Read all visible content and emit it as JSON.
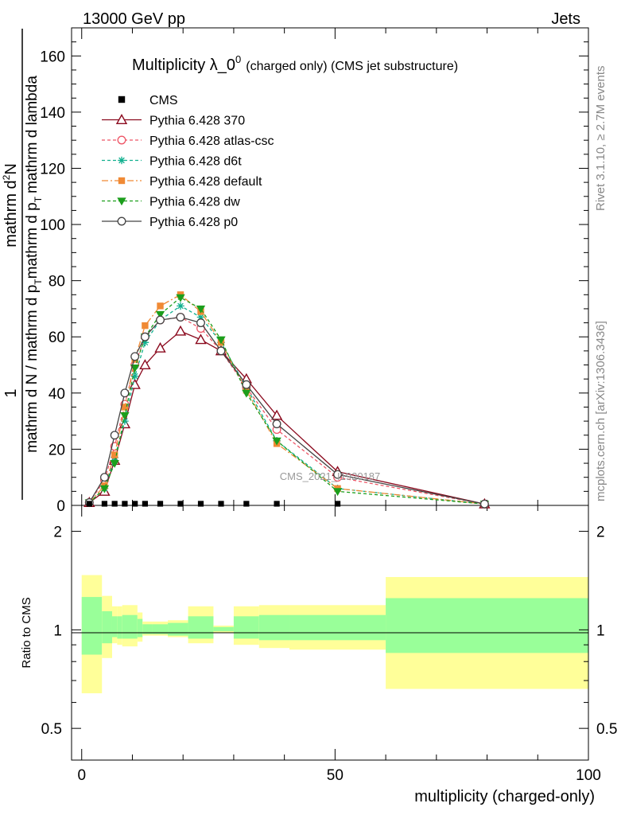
{
  "header": {
    "energy_label": "13000 GeV pp",
    "process_label": "Jets"
  },
  "side_labels": {
    "rivet": "Rivet 3.1.10, ≥ 2.7M events",
    "mcplots": "mcplots.cern.ch [arXiv:1306.3436]"
  },
  "watermark": "CMS_2021_I1920187",
  "chart_data": {
    "type": "line",
    "title_main": "Multiplicity λ_0",
    "title_sup": "0",
    "title_tail": "(charged only) (CMS jet substructure)",
    "xlabel": "multiplicity (charged-only)",
    "ylabel_top": "1",
    "ylabel_denominator": "mathrm d N / mathrm d p_{T} mathrm d p_{T} mathrm d lambda",
    "ylabel_numerator_parts": [
      "mathrm d",
      "2",
      "N"
    ],
    "ylabel_main_display": "mathrm d N / mathrm d p",
    "ylabel_sub_T": "T",
    "ylabel_mid": "mathrm d p",
    "ylabel_tail": "mathrm d lambda",
    "ratio_ylabel": "Ratio to CMS",
    "xlim": [
      -2,
      100
    ],
    "ylim": [
      0,
      170
    ],
    "ratio_ylim": [
      0.4,
      2.4
    ],
    "x_ticks": [
      "0",
      "50",
      "100"
    ],
    "y_ticks": [
      "0",
      "20",
      "40",
      "60",
      "80",
      "100",
      "120",
      "140",
      "160"
    ],
    "ratio_ticks": [
      "0.5",
      "1",
      "2"
    ],
    "legend_position": "top-left",
    "data": {
      "name": "CMS",
      "x": [
        1.5,
        4.5,
        6.5,
        8.5,
        10.5,
        12.5,
        15.5,
        19.5,
        23.5,
        27.5,
        32.5,
        38.5,
        50.5
      ],
      "y": [
        0.3,
        0.3,
        0.3,
        0.3,
        0.3,
        0.3,
        0.3,
        0.3,
        0.3,
        0.3,
        0.3,
        0.3,
        0.3
      ]
    },
    "series": [
      {
        "name": "Pythia 6.428 370",
        "color": "#8b0a1e",
        "dash": "",
        "marker": "triangle-open",
        "y": [
          1,
          5,
          16,
          29,
          43,
          50,
          56,
          62,
          59,
          55,
          45,
          32,
          12,
          0.5
        ]
      },
      {
        "name": "Pythia 6.428 atlas-csc",
        "color": "#ee5566",
        "dash": "4,3",
        "marker": "circle-open",
        "y": [
          1,
          9,
          21,
          36,
          50,
          60,
          66,
          67,
          63,
          55,
          42,
          27,
          10,
          0.5
        ]
      },
      {
        "name": "Pythia 6.428 d6t",
        "color": "#11b08f",
        "dash": "4,3",
        "marker": "star",
        "y": [
          1,
          6,
          17,
          30,
          46,
          58,
          66,
          71,
          67,
          58,
          42,
          23,
          6,
          0.5
        ]
      },
      {
        "name": "Pythia 6.428 default",
        "color": "#f08a35",
        "dash": "8,3,2,3",
        "marker": "square",
        "y": [
          1,
          7,
          18,
          35,
          52,
          64,
          71,
          75,
          69,
          58,
          41,
          22,
          6,
          0.5
        ]
      },
      {
        "name": "Pythia 6.428 dw",
        "color": "#1c9e1c",
        "dash": "4,3",
        "marker": "triangle-down",
        "y": [
          1,
          6,
          15,
          32,
          49,
          60,
          68,
          74,
          70,
          59,
          40,
          23,
          5,
          0.5
        ]
      },
      {
        "name": "Pythia 6.428 p0",
        "color": "#444444",
        "dash": "",
        "marker": "circle-open",
        "y": [
          1,
          10,
          25,
          40,
          53,
          60,
          66,
          67,
          65,
          55,
          43,
          29,
          11,
          0.5
        ]
      }
    ],
    "series_x": [
      1.5,
      4.5,
      6.5,
      8.5,
      10.5,
      12.5,
      15.5,
      19.5,
      23.5,
      27.5,
      32.5,
      38.5,
      50.5,
      79.5
    ],
    "ratio_bands": {
      "bin_edges": [
        0,
        4,
        6,
        7,
        8,
        11,
        12,
        14,
        17,
        21,
        26,
        30,
        35,
        41,
        60,
        100
      ],
      "yellow_upper": [
        1.47,
        1.27,
        1.18,
        1.18,
        1.19,
        1.13,
        1.06,
        1.06,
        1.07,
        1.18,
        1.03,
        1.18,
        1.19,
        1.19,
        1.45
      ],
      "yellow_lower": [
        0.64,
        0.82,
        0.91,
        0.9,
        0.89,
        0.92,
        0.96,
        0.96,
        0.95,
        0.91,
        0.98,
        0.9,
        0.88,
        0.87,
        0.66
      ],
      "green_upper": [
        1.26,
        1.14,
        1.1,
        1.1,
        1.11,
        1.08,
        1.04,
        1.04,
        1.05,
        1.1,
        1.02,
        1.1,
        1.11,
        1.11,
        1.25
      ],
      "green_lower": [
        0.84,
        0.91,
        0.95,
        0.94,
        0.94,
        0.95,
        0.97,
        0.97,
        0.96,
        0.94,
        0.99,
        0.94,
        0.93,
        0.93,
        0.85
      ]
    }
  }
}
